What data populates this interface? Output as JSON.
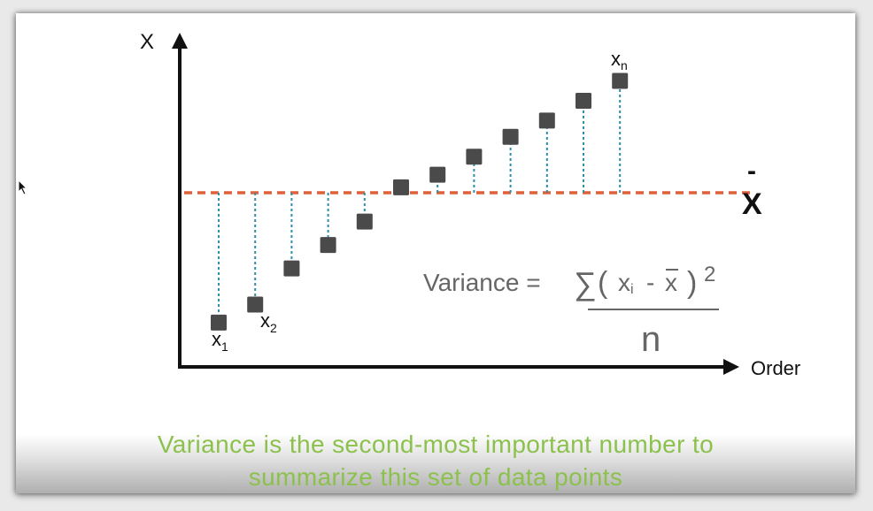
{
  "diagram": {
    "y_axis_label": "X",
    "x_axis_label": "Order",
    "mean_symbol": "X",
    "mean_bar": "-",
    "point_labels": {
      "first": {
        "base": "x",
        "sub": "1"
      },
      "second": {
        "base": "x",
        "sub": "2"
      },
      "last": {
        "base": "x",
        "sub": "n"
      }
    },
    "formula": {
      "lhs": "Variance =",
      "sum": "∑",
      "open": "(",
      "xi_base": "x",
      "xi_sub": "i",
      "minus": "-",
      "xbar": "x",
      "close": ")",
      "exponent": "2",
      "denominator": "n"
    }
  },
  "chart_data": {
    "type": "scatter",
    "ylabel": "X",
    "xlabel": "Order",
    "mean": 0,
    "points": [
      {
        "order": 1,
        "value": -7.2
      },
      {
        "order": 2,
        "value": -6.2
      },
      {
        "order": 3,
        "value": -4.2
      },
      {
        "order": 4,
        "value": -2.9
      },
      {
        "order": 5,
        "value": -1.6
      },
      {
        "order": 6,
        "value": 0.3
      },
      {
        "order": 7,
        "value": 1.0
      },
      {
        "order": 8,
        "value": 2.0
      },
      {
        "order": 9,
        "value": 3.1
      },
      {
        "order": 10,
        "value": 4.0
      },
      {
        "order": 11,
        "value": 5.1
      },
      {
        "order": 12,
        "value": 6.2
      }
    ]
  },
  "caption": {
    "line1": "Variance is the second-most important number to",
    "line2": "summarize this set of data points"
  },
  "colors": {
    "axis": "#111111",
    "mean_line": "#e0603a",
    "drop_line": "#2f8ea8",
    "point": "#4a4a4a",
    "formula_text": "#666666",
    "caption": "#8cc14d"
  }
}
